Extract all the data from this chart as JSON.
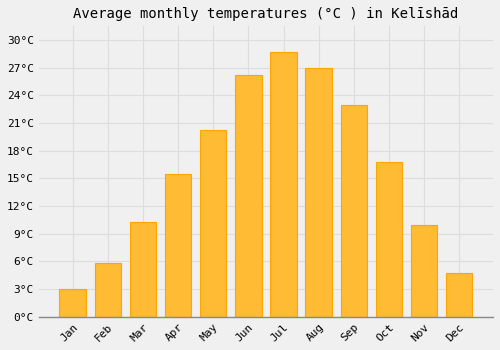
{
  "title": "Average monthly temperatures (°C ) in Kelīshād",
  "months": [
    "Jan",
    "Feb",
    "Mar",
    "Apr",
    "May",
    "Jun",
    "Jul",
    "Aug",
    "Sep",
    "Oct",
    "Nov",
    "Dec"
  ],
  "values": [
    3.0,
    5.8,
    10.3,
    15.5,
    20.3,
    26.2,
    28.7,
    27.0,
    23.0,
    16.8,
    10.0,
    4.8
  ],
  "bar_color": "#FFBB33",
  "bar_edge_color": "#FFA500",
  "background_color": "#F0F0F0",
  "grid_color": "#DDDDDD",
  "yticks": [
    0,
    3,
    6,
    9,
    12,
    15,
    18,
    21,
    24,
    27,
    30
  ],
  "ylim": [
    0,
    31.5
  ],
  "title_fontsize": 10,
  "tick_fontsize": 8,
  "font_family": "monospace"
}
